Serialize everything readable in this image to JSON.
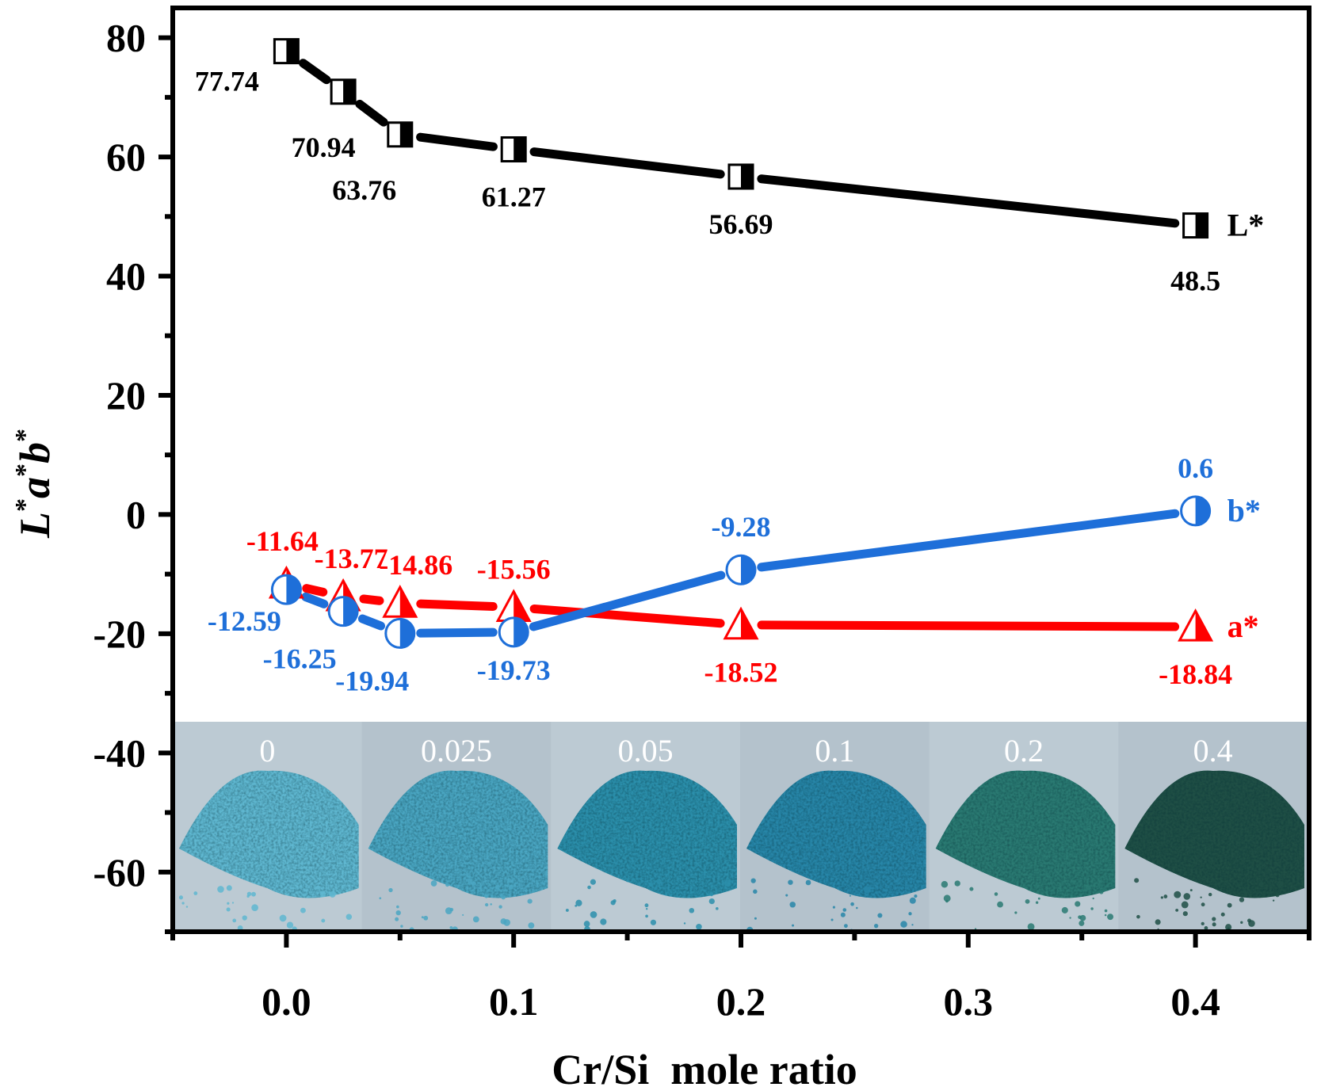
{
  "chart_data": {
    "type": "line",
    "title": "",
    "xlabel": "Cr/Si  mole ratio",
    "ylabel_parts": [
      "L",
      "*",
      "a",
      "*",
      "b",
      "*"
    ],
    "ylabel": "L*a*b*",
    "xlim": [
      -0.05,
      0.45
    ],
    "ylim": [
      -70,
      85
    ],
    "xticks": [
      0.0,
      0.1,
      0.2,
      0.3,
      0.4
    ],
    "xtick_labels": [
      "0.0",
      "0.1",
      "0.2",
      "0.3",
      "0.4"
    ],
    "xminor": [
      -0.05,
      0.05,
      0.15,
      0.25,
      0.35,
      0.45
    ],
    "yticks": [
      -60,
      -40,
      -20,
      0,
      20,
      40,
      60,
      80
    ],
    "ytick_labels": [
      "-60",
      "-40",
      "-20",
      "0",
      "20",
      "40",
      "60",
      "80"
    ],
    "yminor": [
      -70,
      -50,
      -30,
      -10,
      10,
      30,
      50,
      70
    ],
    "grid": false,
    "legend": "inline-right",
    "x": [
      0,
      0.025,
      0.05,
      0.1,
      0.2,
      0.4
    ],
    "series": [
      {
        "name": "L*",
        "color": "#000000",
        "marker": "half-filled-square",
        "values": [
          77.74,
          70.94,
          63.76,
          61.27,
          56.69,
          48.5
        ],
        "labels": [
          "77.74",
          "70.94",
          "63.76",
          "61.27",
          "56.69",
          "48.5"
        ],
        "label_position": "below"
      },
      {
        "name": "a*",
        "color": "#ff0000",
        "marker": "half-filled-triangle",
        "values": [
          -11.64,
          -13.77,
          -14.86,
          -15.56,
          -18.52,
          -18.84
        ],
        "labels": [
          "-11.64",
          "-13.77",
          "-14.86",
          "-15.56",
          "-18.52",
          "-18.84"
        ],
        "label_position": "mixed"
      },
      {
        "name": "b*",
        "color": "#1e6fd9",
        "marker": "half-filled-circle",
        "values": [
          -12.59,
          -16.25,
          -19.94,
          -19.73,
          -9.28,
          0.6
        ],
        "labels": [
          "-12.59",
          "-16.25",
          "-19.94",
          "-19.73",
          "-9.28",
          "0.6"
        ],
        "label_position": "mixed"
      }
    ],
    "inset_photos": {
      "description": "Photographs of pigment powder samples",
      "labels": [
        "0",
        "0.025",
        "0.05",
        "0.1",
        "0.2",
        "0.4"
      ],
      "colors": [
        "#5fb7d0",
        "#4aa6c2",
        "#2b8fab",
        "#2786a8",
        "#2a7a72",
        "#1f4f45"
      ]
    }
  }
}
